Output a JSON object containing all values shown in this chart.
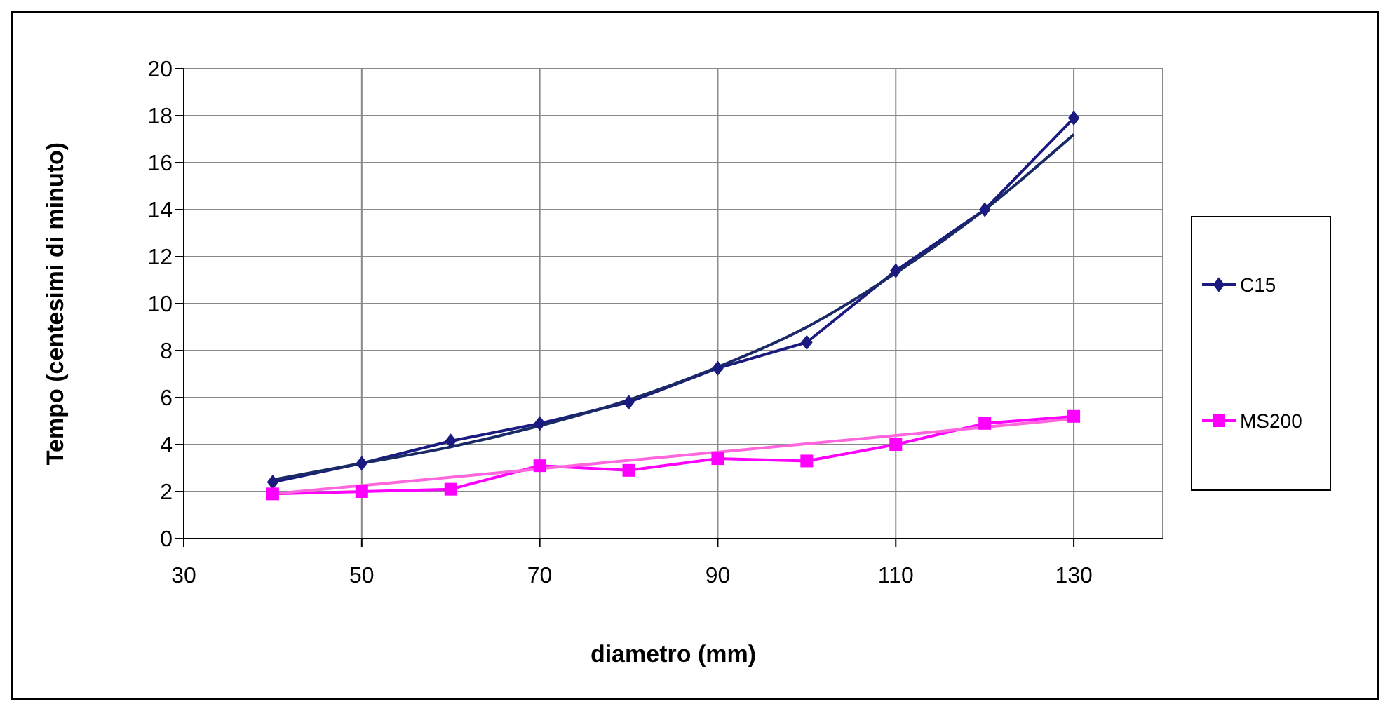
{
  "chart_data": {
    "type": "line",
    "xlabel": "diametro (mm)",
    "ylabel": "Tempo (centesimi di minuto)",
    "xlim": [
      30,
      140
    ],
    "xticks": [
      30,
      50,
      70,
      90,
      110,
      130
    ],
    "ylim": [
      0,
      20
    ],
    "yticks": [
      0,
      2,
      4,
      6,
      8,
      10,
      12,
      14,
      16,
      18,
      20
    ],
    "grid": true,
    "legend": "right",
    "line_style": "solid",
    "series": [
      {
        "name": "C15",
        "color": "#1a1a80",
        "marker": "diamond",
        "x": [
          40,
          50,
          60,
          70,
          80,
          90,
          100,
          110,
          120,
          130
        ],
        "values": [
          2.4,
          3.2,
          4.15,
          4.9,
          5.8,
          7.25,
          8.35,
          11.4,
          14,
          17.9
        ]
      },
      {
        "name": "MS200",
        "color": "#ff00ff",
        "marker": "square",
        "x": [
          40,
          50,
          60,
          70,
          80,
          90,
          100,
          110,
          120,
          130
        ],
        "values": [
          1.9,
          2.0,
          2.1,
          3.1,
          2.9,
          3.4,
          3.3,
          4.0,
          4.9,
          5.2
        ]
      },
      {
        "color": "#1a2a66",
        "marker": "none",
        "x": [
          40,
          50,
          60,
          70,
          80,
          90,
          100,
          110,
          120,
          130
        ],
        "values": [
          2.5,
          3.2,
          3.9,
          4.8,
          5.9,
          7.3,
          9.0,
          11.3,
          14.0,
          17.2
        ]
      },
      {
        "color": "#ff66dd",
        "marker": "none",
        "x": [
          40,
          130
        ],
        "values": [
          1.9,
          5.1
        ]
      }
    ]
  }
}
